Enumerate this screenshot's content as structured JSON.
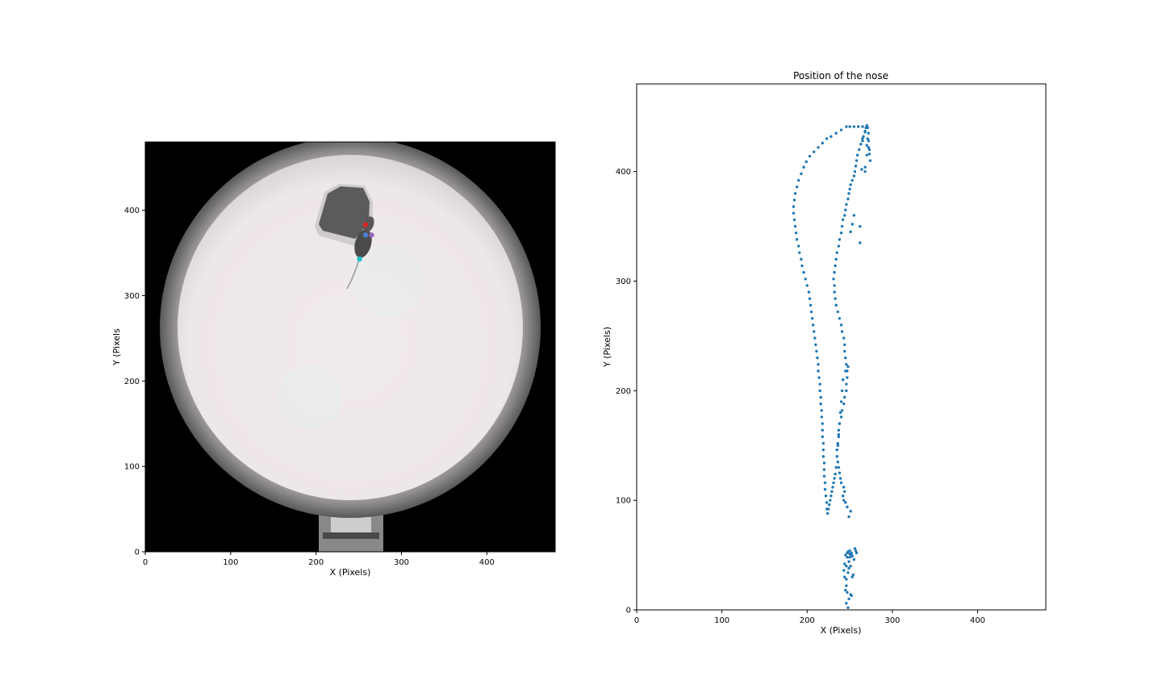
{
  "chart_data": [
    {
      "type": "image",
      "title": "",
      "xlabel": "X (Pixels)",
      "ylabel": "Y (Pixels",
      "xlim": [
        0,
        480
      ],
      "ylim": [
        0,
        480
      ],
      "xticks": [
        0,
        100,
        200,
        300,
        400
      ],
      "yticks": [
        0,
        100,
        200,
        300,
        400
      ],
      "markers": [
        {
          "label": "red",
          "x": 258,
          "y": 383,
          "color": "#d62728"
        },
        {
          "label": "purple",
          "x": 265,
          "y": 371,
          "color": "#9467bd"
        },
        {
          "label": "blue",
          "x": 258,
          "y": 371,
          "color": "#4a7fd4"
        },
        {
          "label": "cyan",
          "x": 251,
          "y": 343,
          "color": "#17becf"
        }
      ]
    },
    {
      "type": "scatter",
      "title": "Position of the nose",
      "xlabel": "X (Pixels)",
      "ylabel": "Y (Pixels)",
      "xlim": [
        0,
        480
      ],
      "ylim": [
        0,
        480
      ],
      "xticks": [
        0,
        100,
        200,
        300,
        400
      ],
      "yticks": [
        0,
        100,
        200,
        300,
        400
      ],
      "color": "#1f77b4",
      "grid": false,
      "series": [
        {
          "x": [
            248,
            246,
            249,
            251,
            245,
            252,
            247,
            246,
            253,
            248,
            251,
            244,
            255,
            250,
            252,
            247,
            243,
            246,
            254,
            249,
            257,
            256,
            252,
            247,
            249,
            246,
            258,
            250,
            245,
            253,
            250,
            248,
            244,
            249,
            251,
            247,
            245,
            243,
            242,
            244,
            243,
            240,
            239,
            238,
            237,
            236,
            235,
            235,
            236,
            237,
            237,
            238,
            240,
            241,
            243,
            244,
            246,
            246,
            247,
            247,
            246,
            245,
            244,
            244,
            243,
            241,
            240,
            238,
            236,
            234,
            233,
            232,
            232,
            231,
            232,
            233,
            234,
            235,
            237,
            238,
            240,
            241,
            242,
            244,
            245,
            246,
            248,
            249,
            250,
            251,
            253,
            255,
            256,
            257,
            258,
            259,
            261,
            263,
            265,
            266,
            268,
            269,
            270,
            271,
            272,
            272,
            272,
            273,
            274,
            270,
            265,
            268,
            262,
            262,
            264,
            268,
            270,
            273,
            271,
            268,
            265,
            260,
            255,
            250,
            246,
            240,
            234,
            228,
            223,
            218,
            213,
            208,
            203,
            199,
            196,
            193,
            190,
            188,
            186,
            185,
            184,
            184,
            185,
            186,
            187,
            188,
            190,
            191,
            193,
            194,
            196,
            198,
            200,
            202,
            203,
            204,
            205,
            206,
            207,
            208,
            209,
            210,
            211,
            212,
            213,
            213,
            214,
            215,
            215,
            216,
            216,
            217,
            217,
            218,
            218,
            218,
            219,
            219,
            219,
            220,
            220,
            220,
            221,
            221,
            222,
            223,
            223,
            224,
            225,
            226,
            227,
            228,
            229,
            230,
            231,
            232,
            233,
            234,
            235,
            236,
            237,
            238,
            239,
            240,
            241,
            242,
            245,
            248,
            251,
            253,
            255
          ],
          "y": [
            2,
            6,
            10,
            14,
            18,
            13,
            16,
            22,
            30,
            34,
            40,
            42,
            46,
            48,
            50,
            52,
            36,
            28,
            32,
            38,
            54,
            56,
            52,
            48,
            44,
            40,
            52,
            54,
            50,
            49,
            51,
            53,
            30,
            85,
            90,
            94,
            98,
            100,
            104,
            108,
            112,
            116,
            120,
            125,
            130,
            135,
            140,
            146,
            152,
            158,
            164,
            170,
            176,
            182,
            188,
            194,
            200,
            206,
            212,
            218,
            224,
            230,
            236,
            242,
            248,
            254,
            260,
            266,
            272,
            278,
            284,
            290,
            296,
            302,
            308,
            314,
            320,
            326,
            332,
            338,
            344,
            350,
            356,
            360,
            365,
            370,
            375,
            380,
            384,
            388,
            392,
            396,
            400,
            405,
            410,
            415,
            420,
            425,
            428,
            432,
            436,
            440,
            442,
            440,
            435,
            428,
            422,
            416,
            410,
            424,
            430,
            400,
            335,
            350,
            402,
            404,
            415,
            420,
            430,
            437,
            441,
            441,
            441,
            441,
            441,
            438,
            435,
            432,
            430,
            426,
            422,
            418,
            414,
            409,
            404,
            398,
            392,
            386,
            380,
            374,
            368,
            362,
            356,
            350,
            344,
            338,
            332,
            326,
            320,
            314,
            308,
            302,
            296,
            290,
            284,
            278,
            272,
            266,
            260,
            254,
            248,
            242,
            236,
            230,
            224,
            218,
            212,
            206,
            200,
            194,
            188,
            182,
            176,
            170,
            164,
            158,
            152,
            146,
            140,
            134,
            128,
            122,
            116,
            110,
            104,
            98,
            92,
            88,
            92,
            96,
            100,
            104,
            108,
            112,
            116,
            120,
            124,
            130,
            140,
            150,
            160,
            170,
            180,
            190,
            200,
            210,
            218,
            222,
            345,
            352,
            360
          ]
        }
      ]
    }
  ]
}
